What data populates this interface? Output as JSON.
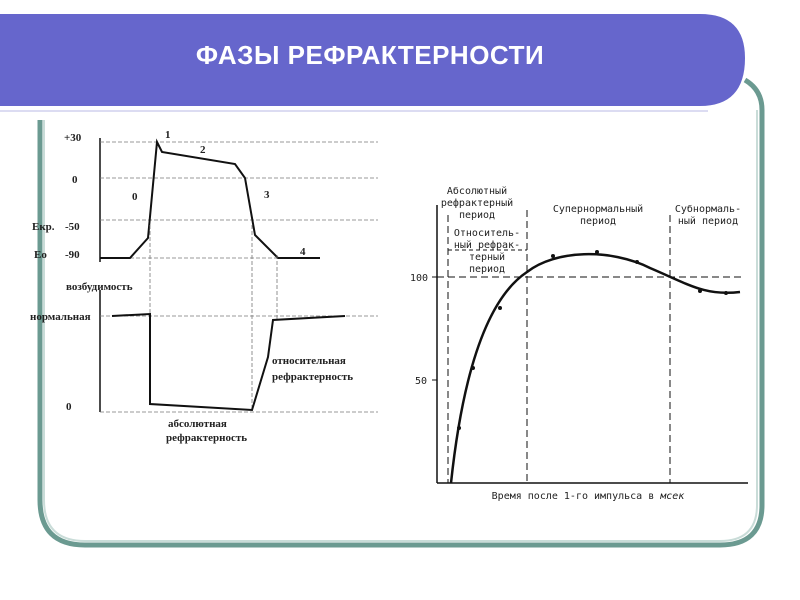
{
  "title": "ФАЗЫ РЕФРАКТЕРНОСТИ",
  "colors": {
    "banner": "#6666cc",
    "frame": "#6b9a91",
    "line": "#111111"
  },
  "left_diagram": {
    "y_ticks": [
      "+30",
      "0",
      "-50",
      "-90"
    ],
    "levels": [
      "Екр.",
      "Ео"
    ],
    "phases": [
      "0",
      "1",
      "2",
      "3",
      "4"
    ],
    "excitability_label": "возбудимость",
    "normal_label": "нормальная",
    "zero_label": "0",
    "absolute_label_1": "абсолютная",
    "absolute_label_2": "рефрактерность",
    "relative_label_1": "относительная",
    "relative_label_2": "рефрактерность"
  },
  "right_chart": {
    "period_absolute": [
      "Абсолютный",
      "рефрактерный",
      "период"
    ],
    "period_relative": [
      "Относитель-",
      "ный рефрак-",
      "терный",
      "период"
    ],
    "period_supernormal": [
      "Супернормальный",
      "период"
    ],
    "period_subnormal": [
      "Субнормаль-",
      "ный период"
    ],
    "y_ticks": [
      "100",
      "50"
    ],
    "xlabel_prefix": "Время после 1-го импульса в",
    "xlabel_unit": "мсек"
  }
}
